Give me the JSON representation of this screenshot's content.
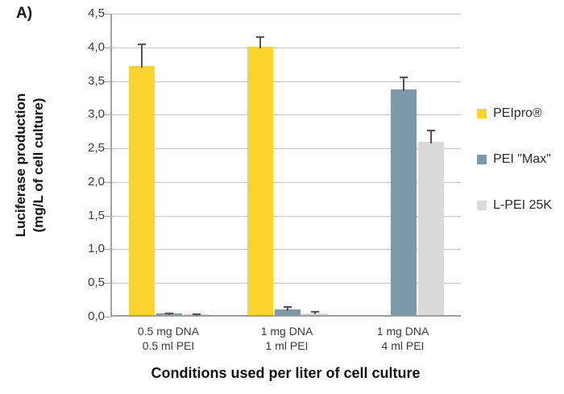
{
  "figure": {
    "panel_label": "A)"
  },
  "chart_data": {
    "type": "bar",
    "title": "",
    "xlabel": "Conditions used per liter of cell culture",
    "ylabel_line1": "Luciferase production",
    "ylabel_line2": "(mg/L of cell culture)",
    "ylim": [
      0,
      4.5
    ],
    "ytick_step": 0.5,
    "ytick_labels": [
      "0,0",
      "0,5",
      "1,0",
      "1,5",
      "2,0",
      "2,5",
      "3,0",
      "3,5",
      "4,0",
      "4,5"
    ],
    "grid": true,
    "legend_position": "right",
    "categories": [
      {
        "line1": "0.5 mg DNA",
        "line2": "0.5 ml PEI"
      },
      {
        "line1": "1 mg DNA",
        "line2": "1 ml PEI"
      },
      {
        "line1": "1 mg DNA",
        "line2": "4 ml PEI"
      }
    ],
    "series": [
      {
        "name": "PEIpro®",
        "color": "#FBD32F",
        "values": [
          3.7,
          3.98,
          null
        ],
        "errors_up": [
          0.35,
          0.17,
          null
        ]
      },
      {
        "name": "PEI \"Max\"",
        "color": "#7C99AA",
        "values": [
          0.02,
          0.08,
          3.35
        ],
        "errors_up": [
          0.03,
          0.06,
          0.2
        ]
      },
      {
        "name": "L-PEI 25K",
        "color": "#DADADA",
        "values": [
          0.015,
          0.03,
          2.57
        ],
        "errors_up": [
          0.015,
          0.04,
          0.2
        ]
      }
    ],
    "colors": {
      "gridline": "#C5C5C5",
      "axis": "#A3A3A3",
      "error_bar": "#555555",
      "tick_text": "#3B3B3B",
      "title_text": "#121212"
    }
  }
}
